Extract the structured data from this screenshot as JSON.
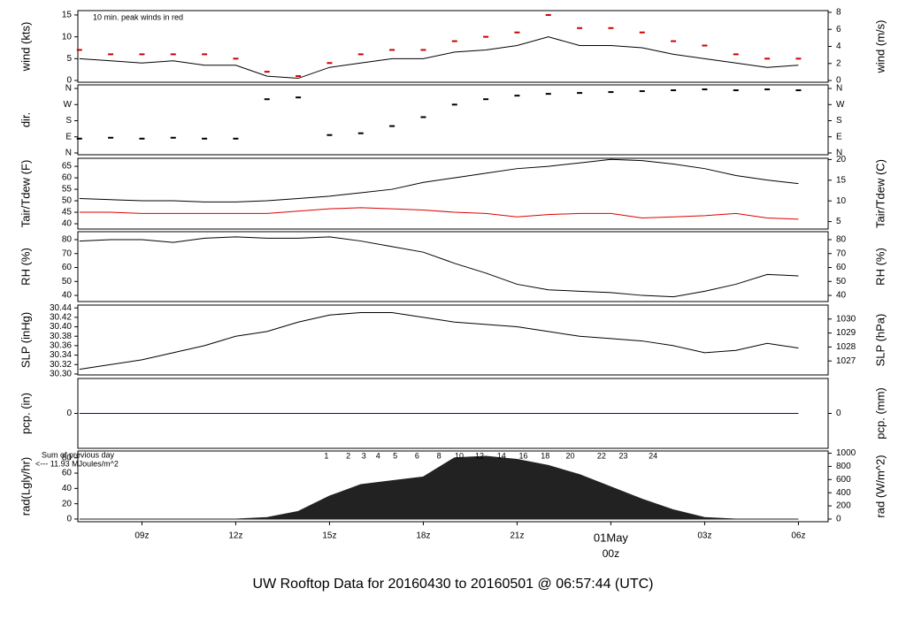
{
  "chart_data": [
    {
      "type": "line",
      "ylabel": "wind (kts)",
      "y2label": "wind (m/s)",
      "note": "10 min. peak winds in red",
      "note_color": "#cc0000",
      "ylim": [
        -0.4,
        16
      ],
      "yticks": [
        0,
        5,
        10,
        15
      ],
      "y2lim": [
        -0.2,
        8.2
      ],
      "y2ticks": [
        0,
        2,
        4,
        6,
        8
      ],
      "x": [
        7,
        8,
        9,
        10,
        11,
        12,
        13,
        14,
        15,
        16,
        17,
        18,
        19,
        20,
        21,
        22,
        23,
        24,
        25,
        26,
        27,
        28,
        29,
        30
      ],
      "series": [
        {
          "name": "wind",
          "type": "line",
          "color": "#000000",
          "values": [
            5,
            4.5,
            4,
            4.5,
            3.5,
            3.5,
            1,
            0.5,
            3,
            4,
            5,
            5,
            6.5,
            7,
            8,
            10,
            8,
            8,
            7.5,
            6,
            5,
            4,
            3,
            3.5
          ]
        },
        {
          "name": "peak",
          "type": "dash",
          "color": "#cc0000",
          "values": [
            7,
            6,
            6,
            6,
            6,
            5,
            2,
            1,
            4,
            6,
            7,
            7,
            9,
            10,
            11,
            15,
            12,
            12,
            11,
            9,
            8,
            6,
            5,
            5
          ]
        }
      ]
    },
    {
      "type": "scatter",
      "ylabel": "dir.",
      "ylim": [
        -10,
        380
      ],
      "yticks": [
        {
          "value": 0,
          "label": "N"
        },
        {
          "value": 90,
          "label": "E"
        },
        {
          "value": 180,
          "label": "S"
        },
        {
          "value": 270,
          "label": "W"
        },
        {
          "value": 360,
          "label": "N"
        }
      ],
      "x": [
        7,
        8,
        9,
        10,
        11,
        12,
        13,
        14,
        15,
        16,
        17,
        18,
        19,
        20,
        21,
        22,
        23,
        24,
        25,
        26,
        27,
        28,
        29,
        30
      ],
      "series": [
        {
          "name": "dir",
          "type": "dash",
          "color": "#000000",
          "values": [
            80,
            85,
            80,
            85,
            80,
            80,
            300,
            310,
            100,
            110,
            150,
            200,
            270,
            300,
            320,
            330,
            335,
            340,
            345,
            350,
            355,
            350,
            355,
            350
          ]
        }
      ]
    },
    {
      "type": "line",
      "ylabel": "Tair/Tdew (F)",
      "y2label": "Tair/Tdew (C)",
      "ylim": [
        37.7,
        68.5
      ],
      "yticks": [
        40,
        45,
        50,
        55,
        60,
        65
      ],
      "y2lim": [
        3.2,
        20.3
      ],
      "y2ticks": [
        5,
        10,
        15,
        20
      ],
      "x": [
        7,
        8,
        9,
        10,
        11,
        12,
        13,
        14,
        15,
        16,
        17,
        18,
        19,
        20,
        21,
        22,
        23,
        24,
        25,
        26,
        27,
        28,
        29,
        30
      ],
      "series": [
        {
          "name": "Tair",
          "type": "line",
          "color": "#000000",
          "values": [
            51,
            50.5,
            50,
            50,
            49.5,
            49.5,
            50,
            51,
            52,
            53.5,
            55,
            58,
            60,
            62,
            64,
            65,
            66.5,
            68,
            67.5,
            66,
            64,
            61,
            59,
            57.5
          ]
        },
        {
          "name": "Tdew",
          "type": "line",
          "color": "#dd0000",
          "values": [
            45,
            45,
            44.5,
            44.5,
            44.5,
            44.5,
            44.5,
            45.5,
            46.5,
            47,
            46.5,
            46,
            45,
            44.5,
            43,
            44,
            44.5,
            44.5,
            42.5,
            43,
            43.5,
            44.5,
            42.5,
            42
          ]
        }
      ]
    },
    {
      "type": "line",
      "ylabel": "RH (%)",
      "y2label": "RH (%)",
      "ylim": [
        35.6,
        85.7
      ],
      "yticks": [
        40,
        50,
        60,
        70,
        80
      ],
      "x": [
        7,
        8,
        9,
        10,
        11,
        12,
        13,
        14,
        15,
        16,
        17,
        18,
        19,
        20,
        21,
        22,
        23,
        24,
        25,
        26,
        27,
        28,
        29,
        30
      ],
      "series": [
        {
          "name": "RH",
          "type": "line",
          "color": "#000000",
          "values": [
            79,
            80,
            80,
            78,
            81,
            82,
            81,
            81,
            82,
            79,
            75,
            71,
            63,
            56,
            48,
            44,
            43,
            42,
            40,
            39,
            43,
            48,
            55,
            54
          ]
        }
      ]
    },
    {
      "type": "line",
      "ylabel": "SLP (inHg)",
      "y2label": "SLP (hPa)",
      "ylim": [
        30.298,
        30.446
      ],
      "yticks": [
        {
          "value": 30.3,
          "label": "30.30"
        },
        30.32,
        30.34,
        30.36,
        30.38,
        {
          "value": 30.4,
          "label": "30.40"
        },
        30.42,
        30.44
      ],
      "y2lim": [
        1026.0,
        1031.0
      ],
      "y2ticks": [
        1027,
        1028,
        1029,
        1030
      ],
      "x": [
        7,
        8,
        9,
        10,
        11,
        12,
        13,
        14,
        15,
        16,
        17,
        18,
        19,
        20,
        21,
        22,
        23,
        24,
        25,
        26,
        27,
        28,
        29,
        30
      ],
      "series": [
        {
          "name": "SLP",
          "type": "line",
          "color": "#000000",
          "values": [
            30.31,
            30.32,
            30.33,
            30.345,
            30.36,
            30.38,
            30.39,
            30.41,
            30.425,
            30.43,
            30.43,
            30.42,
            30.41,
            30.405,
            30.4,
            30.39,
            30.38,
            30.375,
            30.37,
            30.36,
            30.345,
            30.35,
            30.365,
            30.355
          ]
        }
      ]
    },
    {
      "type": "line",
      "ylabel": "pcp. (in)",
      "y2label": "pcp. (mm)",
      "ylim": [
        -0.1,
        0.1
      ],
      "yticks": [
        0
      ],
      "y2lim": [
        -2.54,
        2.54
      ],
      "y2ticks": [
        0
      ],
      "x": [
        7,
        8,
        9,
        10,
        11,
        12,
        13,
        14,
        15,
        16,
        17,
        18,
        19,
        20,
        21,
        22,
        23,
        24,
        25,
        26,
        27,
        28,
        29,
        30
      ],
      "series": [
        {
          "name": "pcp",
          "type": "line",
          "color": "#0000cc",
          "values": [
            0,
            0,
            0,
            0,
            0,
            0,
            0,
            0,
            0,
            0,
            0,
            0,
            0,
            0,
            0,
            0,
            0,
            0,
            0,
            0,
            0,
            0,
            0,
            0
          ]
        }
      ]
    },
    {
      "type": "area",
      "ylabel": "rad(Lgly/hr)",
      "y2label": "rad (W/m^2)",
      "notes": [
        "Sum of previous day",
        "<--- 11.93 MJoules/m^2"
      ],
      "note_color": "#9900cc",
      "ylim": [
        -3.5,
        88.9
      ],
      "yticks": [
        0,
        20,
        40,
        60,
        80
      ],
      "y2lim": [
        -40.7,
        1034
      ],
      "y2ticks": [
        0,
        200,
        400,
        600,
        800,
        1000
      ],
      "hour_marks": [
        {
          "x": 14.9,
          "label": "1"
        },
        {
          "x": 15.6,
          "label": "2"
        },
        {
          "x": 16.1,
          "label": "3"
        },
        {
          "x": 16.55,
          "label": "4"
        },
        {
          "x": 17.1,
          "label": "5"
        },
        {
          "x": 17.8,
          "label": "6"
        },
        {
          "x": 18.5,
          "label": "8"
        },
        {
          "x": 19.15,
          "label": "10"
        },
        {
          "x": 19.8,
          "label": "12"
        },
        {
          "x": 20.5,
          "label": "14"
        },
        {
          "x": 21.2,
          "label": "16"
        },
        {
          "x": 21.9,
          "label": "18"
        },
        {
          "x": 22.7,
          "label": "20"
        },
        {
          "x": 23.7,
          "label": "22"
        },
        {
          "x": 24.4,
          "label": "23"
        },
        {
          "x": 25.35,
          "label": "24"
        }
      ],
      "x": [
        7,
        8,
        9,
        10,
        11,
        12,
        13,
        14,
        15,
        16,
        17,
        18,
        19,
        20,
        21,
        22,
        23,
        24,
        25,
        26,
        27,
        28,
        29,
        30
      ],
      "series": [
        {
          "name": "rad",
          "type": "area",
          "color": "#222222",
          "values": [
            0,
            0,
            0,
            0,
            0,
            0,
            2,
            10,
            30,
            45,
            50,
            55,
            80,
            82,
            78,
            70,
            58,
            42,
            26,
            12,
            2,
            0,
            0,
            0
          ]
        }
      ]
    }
  ],
  "x_axis": {
    "xlim": [
      6.95,
      30.95
    ],
    "xticks": [
      {
        "value": 9,
        "label": "09z"
      },
      {
        "value": 12,
        "label": "12z"
      },
      {
        "value": 15,
        "label": "15z"
      },
      {
        "value": 18,
        "label": "18z"
      },
      {
        "value": 21,
        "label": "21z"
      },
      {
        "value": 24,
        "label": "00z",
        "color": "#dd0000"
      },
      {
        "value": 27,
        "label": "03z"
      },
      {
        "value": 30,
        "label": "06z"
      }
    ],
    "date_label": {
      "text": "01May",
      "x": 24,
      "color": "#dd0000"
    }
  },
  "title": "UW Rooftop Data for 20160430  to  20160501 @ 06:57:44  (UTC)",
  "title_color": "#0000cc"
}
